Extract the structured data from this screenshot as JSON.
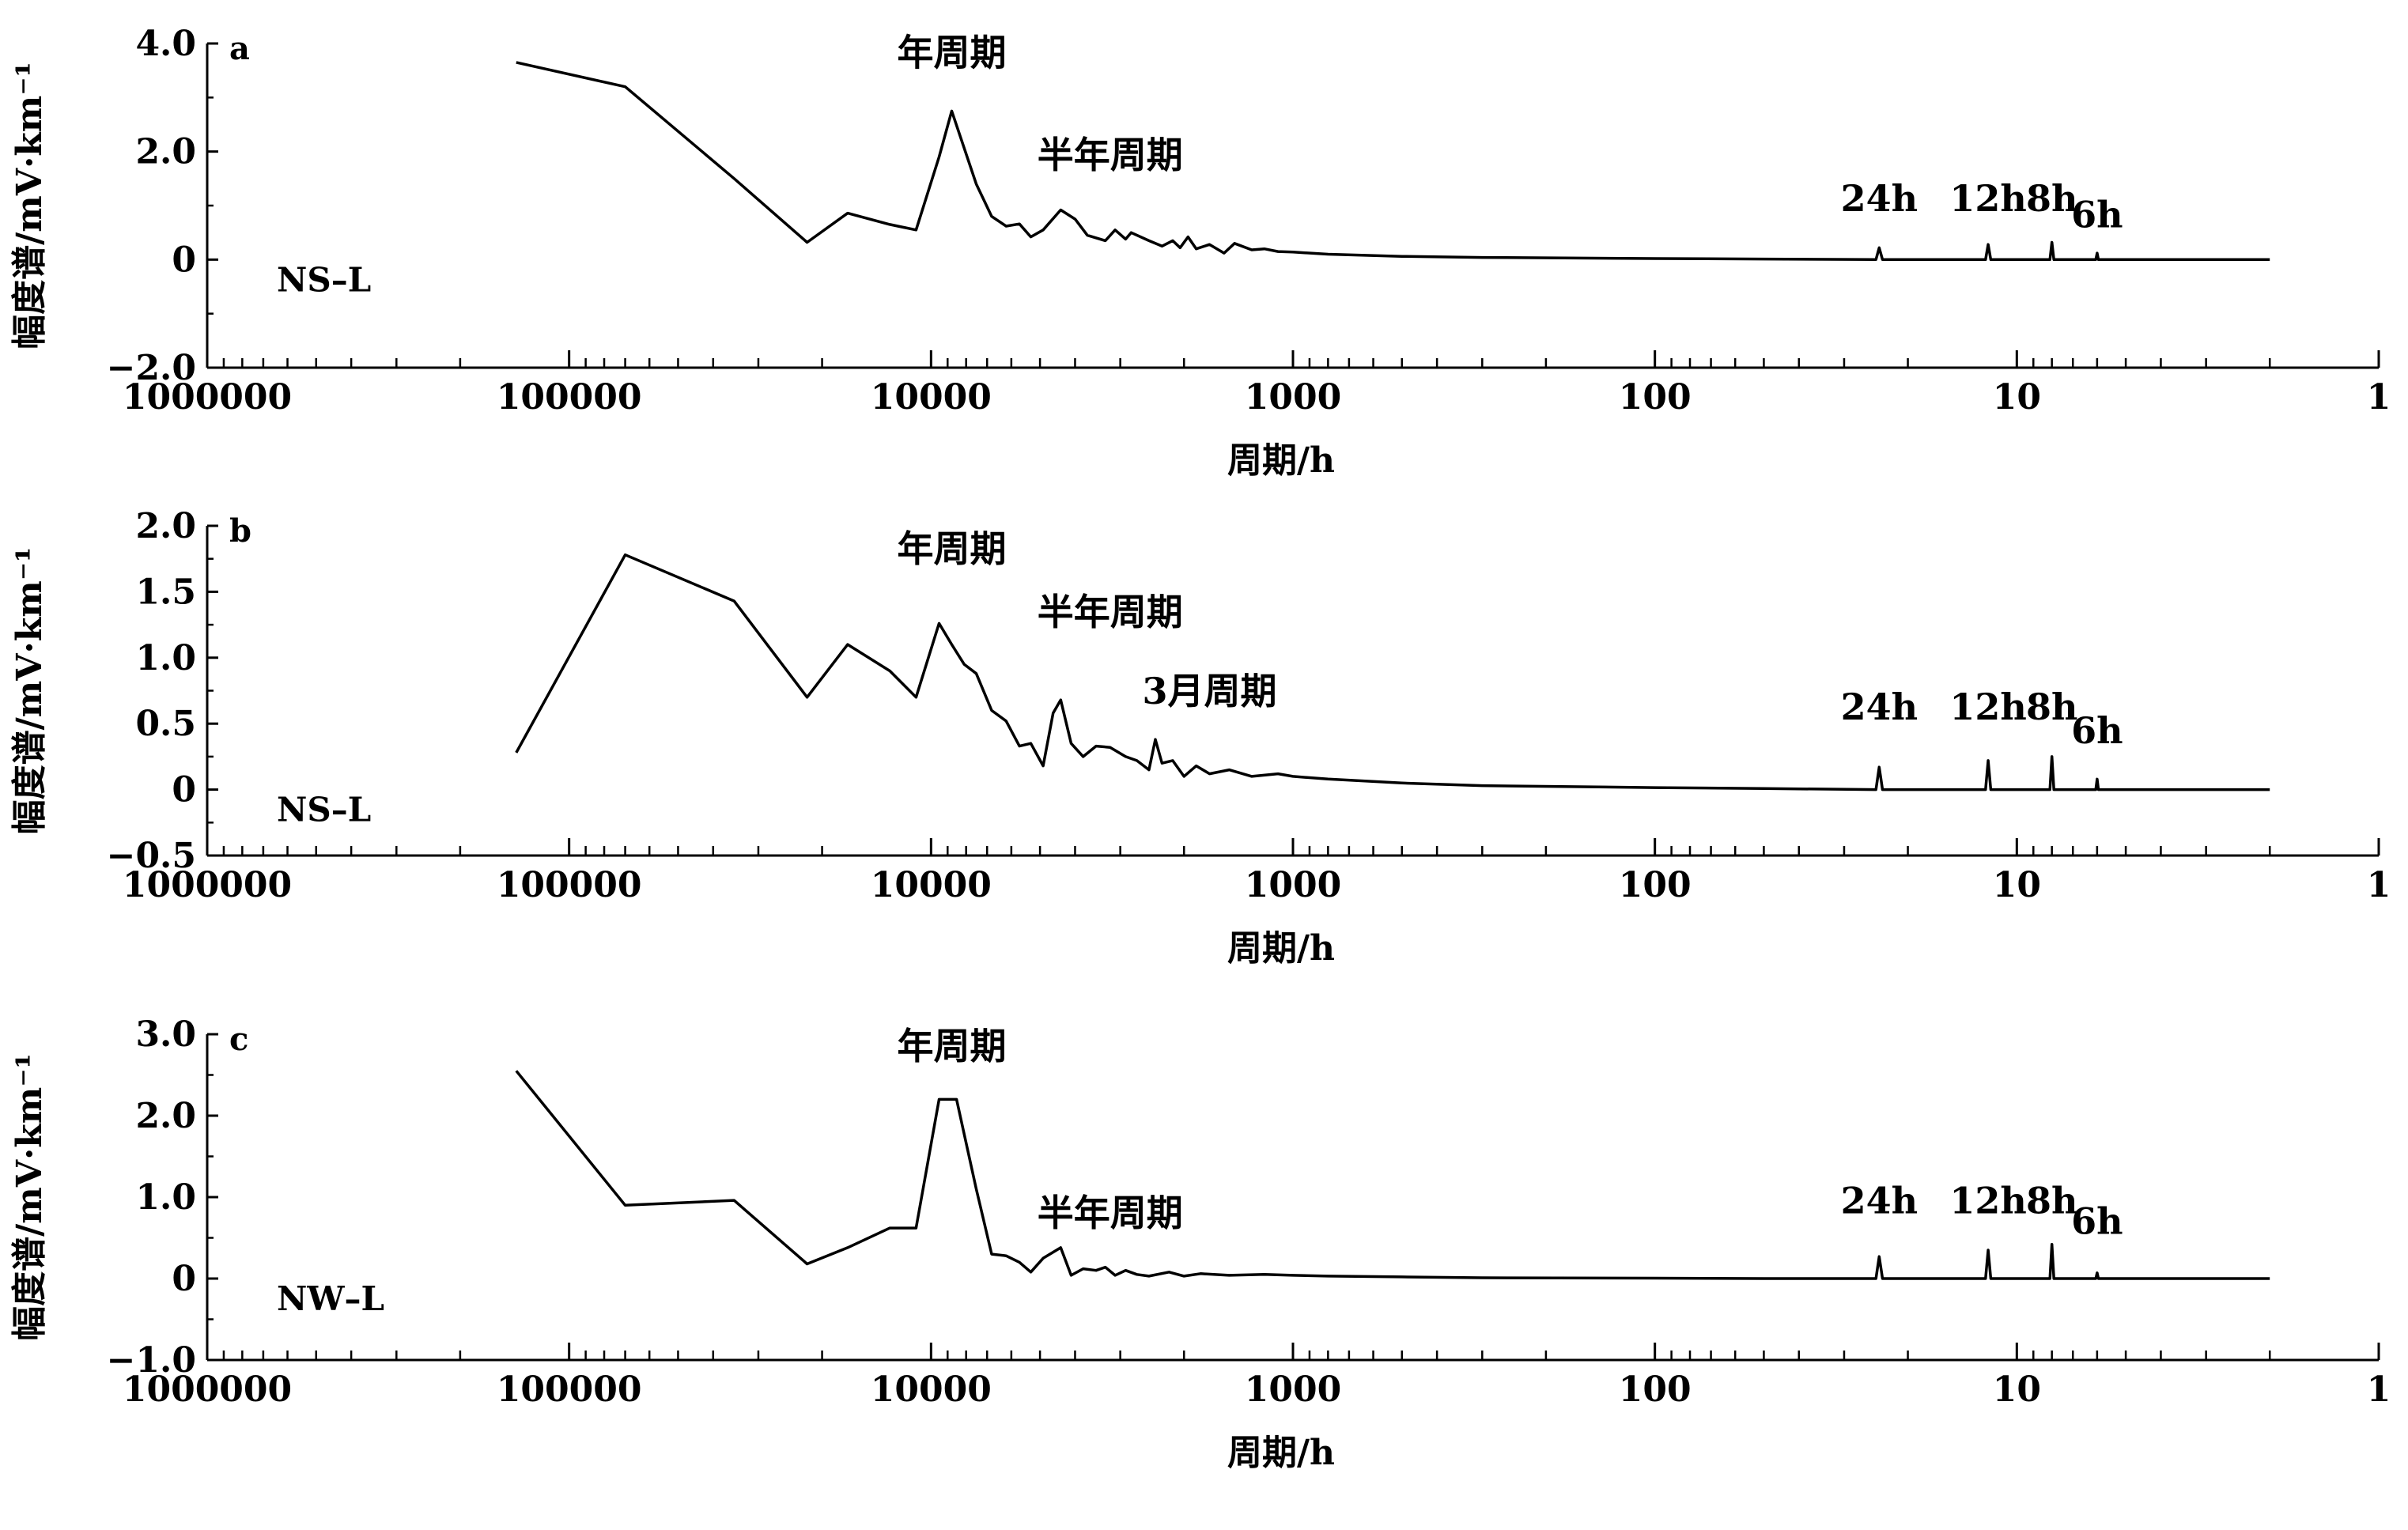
{
  "chart_data": [
    {
      "type": "line",
      "panel_label": "a",
      "series_label": "NS–L",
      "xlabel": "周期/h",
      "ylabel": "幅度谱/mV·km⁻¹",
      "xscale": "log",
      "xaxis_reversed": true,
      "xlim": [
        1000000,
        1
      ],
      "ylim": [
        -2.0,
        4.0
      ],
      "yticks": [
        -2.0,
        0,
        2.0,
        4.0
      ],
      "ytick_labels": [
        "−2.0",
        "0",
        "2.0",
        "4.0"
      ],
      "xticks": [
        1000000,
        100000,
        10000,
        1000,
        100,
        10,
        1
      ],
      "xtick_labels": [
        "1000000",
        "100000",
        "10000",
        "1000",
        "100",
        "10",
        "1"
      ],
      "annotations": [
        {
          "text": "年周期",
          "x": 8766,
          "y": 3.6
        },
        {
          "text": "半年周期",
          "x": 3200,
          "y": 1.7
        },
        {
          "text": "24h",
          "x": 24,
          "y": 0.9
        },
        {
          "text": "12h",
          "x": 12,
          "y": 0.9
        },
        {
          "text": "8h",
          "x": 8,
          "y": 0.9
        },
        {
          "text": "6h",
          "x": 6,
          "y": 0.6
        }
      ],
      "series": [
        {
          "points": [
            [
              140000,
              3.65
            ],
            [
              70000,
              3.2
            ],
            [
              35000,
              1.5
            ],
            [
              22000,
              0.32
            ],
            [
              17000,
              0.86
            ],
            [
              13000,
              0.65
            ],
            [
              11000,
              0.55
            ],
            [
              9500,
              1.9
            ],
            [
              8766,
              2.75
            ],
            [
              7500,
              1.4
            ],
            [
              6800,
              0.8
            ],
            [
              6200,
              0.62
            ],
            [
              5700,
              0.66
            ],
            [
              5300,
              0.42
            ],
            [
              4900,
              0.55
            ],
            [
              4383,
              0.92
            ],
            [
              4000,
              0.75
            ],
            [
              3700,
              0.45
            ],
            [
              3300,
              0.35
            ],
            [
              3100,
              0.55
            ],
            [
              2900,
              0.38
            ],
            [
              2800,
              0.5
            ],
            [
              2500,
              0.35
            ],
            [
              2300,
              0.25
            ],
            [
              2150,
              0.35
            ],
            [
              2050,
              0.22
            ],
            [
              1950,
              0.42
            ],
            [
              1850,
              0.2
            ],
            [
              1700,
              0.28
            ],
            [
              1550,
              0.12
            ],
            [
              1450,
              0.3
            ],
            [
              1300,
              0.18
            ],
            [
              1200,
              0.2
            ],
            [
              1100,
              0.15
            ],
            [
              1000,
              0.14
            ],
            [
              800,
              0.1
            ],
            [
              500,
              0.06
            ],
            [
              300,
              0.04
            ],
            [
              100,
              0.02
            ],
            [
              50,
              0.01
            ],
            [
              24.5,
              0.0
            ],
            [
              24,
              0.22
            ],
            [
              23.5,
              0.0
            ],
            [
              12.2,
              0.0
            ],
            [
              12,
              0.28
            ],
            [
              11.8,
              0.0
            ],
            [
              8.1,
              0.0
            ],
            [
              8,
              0.32
            ],
            [
              7.9,
              0.0
            ],
            [
              6.05,
              0.0
            ],
            [
              6,
              0.12
            ],
            [
              5.95,
              0.0
            ],
            [
              2,
              0.0
            ]
          ]
        }
      ]
    },
    {
      "type": "line",
      "panel_label": "b",
      "series_label": "NS–L",
      "xlabel": "周期/h",
      "ylabel": "幅度谱/mV·km⁻¹",
      "xscale": "log",
      "xaxis_reversed": true,
      "xlim": [
        1000000,
        1
      ],
      "ylim": [
        -0.5,
        2.0
      ],
      "yticks": [
        -0.5,
        0,
        0.5,
        1.0,
        1.5,
        2.0
      ],
      "ytick_labels": [
        "−0.5",
        "0",
        "0.5",
        "1.0",
        "1.5",
        "2.0"
      ],
      "xticks": [
        1000000,
        100000,
        10000,
        1000,
        100,
        10,
        1
      ],
      "xtick_labels": [
        "1000000",
        "100000",
        "10000",
        "1000",
        "100",
        "10",
        "1"
      ],
      "annotations": [
        {
          "text": "年周期",
          "x": 8766,
          "y": 1.73
        },
        {
          "text": "半年周期",
          "x": 3200,
          "y": 1.25
        },
        {
          "text": "3月周期",
          "x": 1700,
          "y": 0.65
        },
        {
          "text": "24h",
          "x": 24,
          "y": 0.53
        },
        {
          "text": "12h",
          "x": 12,
          "y": 0.53
        },
        {
          "text": "8h",
          "x": 8,
          "y": 0.53
        },
        {
          "text": "6h",
          "x": 6,
          "y": 0.35
        }
      ],
      "series": [
        {
          "points": [
            [
              140000,
              0.28
            ],
            [
              70000,
              1.78
            ],
            [
              35000,
              1.43
            ],
            [
              22000,
              0.7
            ],
            [
              17000,
              1.1
            ],
            [
              13000,
              0.9
            ],
            [
              11000,
              0.7
            ],
            [
              9500,
              1.26
            ],
            [
              8766,
              1.1
            ],
            [
              8100,
              0.95
            ],
            [
              7500,
              0.88
            ],
            [
              6800,
              0.6
            ],
            [
              6200,
              0.52
            ],
            [
              5700,
              0.33
            ],
            [
              5300,
              0.35
            ],
            [
              4900,
              0.18
            ],
            [
              4600,
              0.58
            ],
            [
              4383,
              0.68
            ],
            [
              4100,
              0.35
            ],
            [
              3800,
              0.25
            ],
            [
              3500,
              0.33
            ],
            [
              3200,
              0.32
            ],
            [
              2900,
              0.25
            ],
            [
              2700,
              0.22
            ],
            [
              2500,
              0.15
            ],
            [
              2400,
              0.38
            ],
            [
              2300,
              0.2
            ],
            [
              2150,
              0.22
            ],
            [
              2000,
              0.1
            ],
            [
              1850,
              0.18
            ],
            [
              1700,
              0.12
            ],
            [
              1500,
              0.15
            ],
            [
              1300,
              0.1
            ],
            [
              1100,
              0.12
            ],
            [
              1000,
              0.1
            ],
            [
              800,
              0.08
            ],
            [
              500,
              0.05
            ],
            [
              300,
              0.03
            ],
            [
              100,
              0.015
            ],
            [
              50,
              0.008
            ],
            [
              24.5,
              0.0
            ],
            [
              24,
              0.17
            ],
            [
              23.5,
              0.0
            ],
            [
              12.2,
              0.0
            ],
            [
              12,
              0.22
            ],
            [
              11.8,
              0.0
            ],
            [
              8.1,
              0.0
            ],
            [
              8,
              0.25
            ],
            [
              7.9,
              0.0
            ],
            [
              6.05,
              0.0
            ],
            [
              6,
              0.08
            ],
            [
              5.95,
              0.0
            ],
            [
              2,
              0.0
            ]
          ]
        }
      ]
    },
    {
      "type": "line",
      "panel_label": "c",
      "series_label": "NW–L",
      "xlabel": "周期/h",
      "ylabel": "幅度谱/mV·km⁻¹",
      "xscale": "log",
      "xaxis_reversed": true,
      "xlim": [
        1000000,
        1
      ],
      "ylim": [
        -1.0,
        3.0
      ],
      "yticks": [
        -1.0,
        0,
        1.0,
        2.0,
        3.0
      ],
      "ytick_labels": [
        "−1.0",
        "0",
        "1.0",
        "2.0",
        "3.0"
      ],
      "xticks": [
        1000000,
        100000,
        10000,
        1000,
        100,
        10,
        1
      ],
      "xtick_labels": [
        "1000000",
        "100000",
        "10000",
        "1000",
        "100",
        "10",
        "1"
      ],
      "annotations": [
        {
          "text": "年周期",
          "x": 8766,
          "y": 2.7
        },
        {
          "text": "半年周期",
          "x": 3200,
          "y": 0.65
        },
        {
          "text": "24h",
          "x": 24,
          "y": 0.8
        },
        {
          "text": "12h",
          "x": 12,
          "y": 0.8
        },
        {
          "text": "8h",
          "x": 8,
          "y": 0.8
        },
        {
          "text": "6h",
          "x": 6,
          "y": 0.55
        }
      ],
      "series": [
        {
          "points": [
            [
              140000,
              2.55
            ],
            [
              70000,
              0.9
            ],
            [
              35000,
              0.96
            ],
            [
              22000,
              0.18
            ],
            [
              17000,
              0.38
            ],
            [
              13000,
              0.62
            ],
            [
              11000,
              0.62
            ],
            [
              9500,
              2.2
            ],
            [
              8500,
              2.2
            ],
            [
              7500,
              1.1
            ],
            [
              6800,
              0.3
            ],
            [
              6200,
              0.28
            ],
            [
              5700,
              0.2
            ],
            [
              5300,
              0.08
            ],
            [
              4900,
              0.25
            ],
            [
              4383,
              0.38
            ],
            [
              4100,
              0.04
            ],
            [
              3800,
              0.12
            ],
            [
              3500,
              0.1
            ],
            [
              3300,
              0.14
            ],
            [
              3100,
              0.04
            ],
            [
              2900,
              0.1
            ],
            [
              2700,
              0.05
            ],
            [
              2500,
              0.03
            ],
            [
              2200,
              0.08
            ],
            [
              2000,
              0.03
            ],
            [
              1800,
              0.06
            ],
            [
              1500,
              0.04
            ],
            [
              1200,
              0.05
            ],
            [
              1000,
              0.04
            ],
            [
              800,
              0.03
            ],
            [
              500,
              0.02
            ],
            [
              300,
              0.01
            ],
            [
              100,
              0.005
            ],
            [
              50,
              0.0
            ],
            [
              24.5,
              0.0
            ],
            [
              24,
              0.27
            ],
            [
              23.5,
              0.0
            ],
            [
              12.2,
              0.0
            ],
            [
              12,
              0.35
            ],
            [
              11.8,
              0.0
            ],
            [
              8.1,
              0.0
            ],
            [
              8,
              0.42
            ],
            [
              7.9,
              0.0
            ],
            [
              6.05,
              0.0
            ],
            [
              6,
              0.07
            ],
            [
              5.95,
              0.0
            ],
            [
              2,
              0.0
            ]
          ]
        }
      ]
    }
  ]
}
